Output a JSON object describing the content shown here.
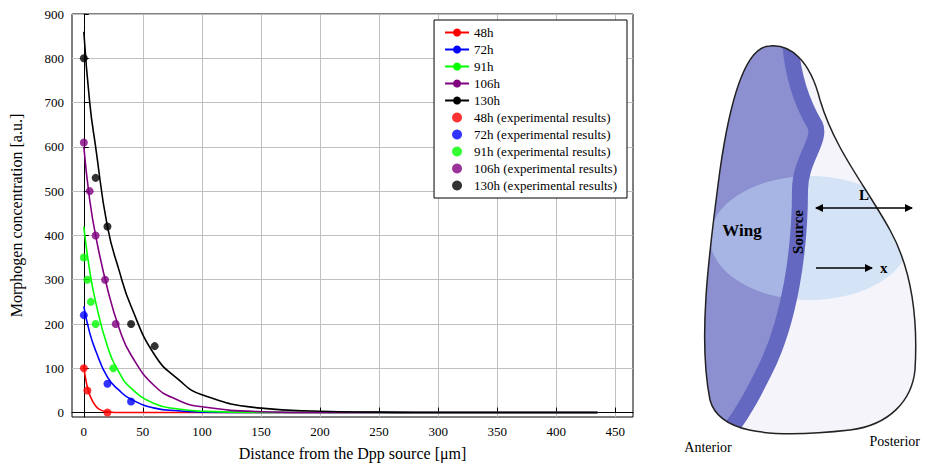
{
  "chart_data": {
    "type": "line",
    "x_label": "Distance from the Dpp source [μm]",
    "y_label": "Morphogen concentration [a.u.]",
    "xlim": [
      -10,
      465
    ],
    "xticks": [
      0,
      50,
      100,
      150,
      200,
      250,
      300,
      350,
      400,
      450
    ],
    "ylim": [
      -10,
      900
    ],
    "yticks": [
      0,
      100,
      200,
      300,
      400,
      500,
      600,
      700,
      800,
      900
    ],
    "grid": true,
    "legend": "upper right",
    "series": [
      {
        "name": "48h",
        "type": "line",
        "color": "#ff0000",
        "x": [
          0,
          2,
          5,
          10,
          15,
          20,
          30,
          50,
          100,
          200,
          300,
          435
        ],
        "values": [
          105,
          70,
          40,
          15,
          5,
          2,
          0,
          0,
          0,
          0,
          0,
          0
        ]
      },
      {
        "name": "72h",
        "type": "line",
        "color": "#0000ff",
        "x": [
          0,
          5,
          10,
          20,
          30,
          40,
          60,
          80,
          100,
          150,
          200,
          300,
          435
        ],
        "values": [
          240,
          180,
          140,
          80,
          50,
          30,
          10,
          4,
          1,
          0,
          0,
          0,
          0
        ]
      },
      {
        "name": "91h",
        "type": "line",
        "color": "#00ff00",
        "x": [
          0,
          5,
          10,
          20,
          30,
          40,
          60,
          80,
          100,
          150,
          200,
          300,
          435
        ],
        "values": [
          420,
          320,
          250,
          150,
          90,
          55,
          20,
          8,
          3,
          0,
          0,
          0,
          0
        ]
      },
      {
        "name": "106h",
        "type": "line",
        "color": "#800080",
        "x": [
          0,
          5,
          10,
          20,
          30,
          40,
          60,
          80,
          100,
          150,
          200,
          300,
          435
        ],
        "values": [
          600,
          480,
          400,
          280,
          190,
          130,
          60,
          28,
          13,
          2,
          0,
          0,
          0
        ]
      },
      {
        "name": "130h",
        "type": "line",
        "color": "#000000",
        "x": [
          0,
          5,
          10,
          20,
          30,
          40,
          60,
          80,
          100,
          150,
          200,
          250,
          300,
          435
        ],
        "values": [
          860,
          700,
          600,
          420,
          320,
          240,
          130,
          75,
          40,
          10,
          3,
          1,
          0,
          0
        ]
      },
      {
        "name": "48h (experimental results)",
        "type": "scatter",
        "marker": "circle",
        "color": "#ff0000",
        "x": [
          0,
          3,
          20
        ],
        "values": [
          100,
          50,
          0
        ]
      },
      {
        "name": "72h (experimental results)",
        "type": "scatter",
        "marker": "circle",
        "color": "#0000ff",
        "x": [
          0,
          20,
          40
        ],
        "values": [
          220,
          65,
          25
        ]
      },
      {
        "name": "91h (experimental results)",
        "type": "scatter",
        "marker": "circle",
        "color": "#00ff00",
        "x": [
          0,
          3,
          6,
          10,
          25
        ],
        "values": [
          350,
          300,
          250,
          200,
          100
        ]
      },
      {
        "name": "106h (experimental results)",
        "type": "scatter",
        "marker": "circle",
        "color": "#800080",
        "x": [
          0,
          5,
          10,
          18,
          27
        ],
        "values": [
          610,
          500,
          400,
          300,
          200
        ]
      },
      {
        "name": "130h (experimental results)",
        "type": "scatter",
        "marker": "circle",
        "color": "#000000",
        "x": [
          0,
          10,
          20,
          40,
          60
        ],
        "values": [
          800,
          530,
          420,
          200,
          150
        ]
      }
    ]
  },
  "diagram": {
    "labels": {
      "wing": "Wing",
      "source": "Source",
      "length": "L",
      "position": "x",
      "anterior": "Anterior",
      "posterior": "Posterior"
    }
  }
}
